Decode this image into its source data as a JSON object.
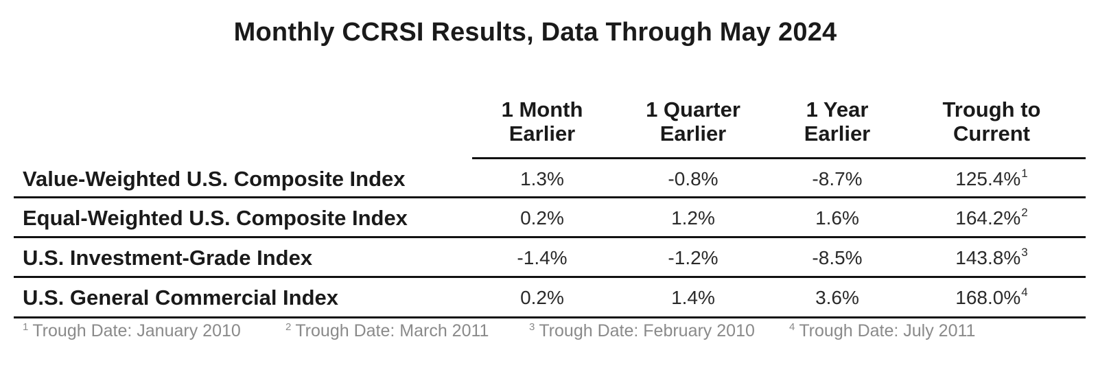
{
  "title": "Monthly CCRSI Results, Data Through May 2024",
  "columns": [
    {
      "line1": "1 Month",
      "line2": "Earlier"
    },
    {
      "line1": "1 Quarter",
      "line2": "Earlier"
    },
    {
      "line1": "1 Year",
      "line2": "Earlier"
    },
    {
      "line1": "Trough to",
      "line2": "Current"
    }
  ],
  "rows": [
    {
      "label": "Value-Weighted U.S. Composite Index",
      "values": [
        "1.3%",
        "-0.8%",
        "-8.7%",
        "125.4%"
      ],
      "note": "1"
    },
    {
      "label": "Equal-Weighted U.S. Composite Index",
      "values": [
        "0.2%",
        "1.2%",
        "1.6%",
        "164.2%"
      ],
      "note": "2"
    },
    {
      "label": "U.S. Investment-Grade Index",
      "values": [
        "-1.4%",
        "-1.2%",
        "-8.5%",
        "143.8%"
      ],
      "note": "3"
    },
    {
      "label": "U.S. General Commercial Index",
      "values": [
        "0.2%",
        "1.4%",
        "3.6%",
        "168.0%"
      ],
      "note": "4"
    }
  ],
  "footnotes": [
    {
      "mark": "1",
      "text": "Trough Date: January 2010"
    },
    {
      "mark": "2",
      "text": "Trough Date: March 2011"
    },
    {
      "mark": "3",
      "text": "Trough Date: February 2010"
    },
    {
      "mark": "4",
      "text": "Trough Date: July 2011"
    }
  ]
}
